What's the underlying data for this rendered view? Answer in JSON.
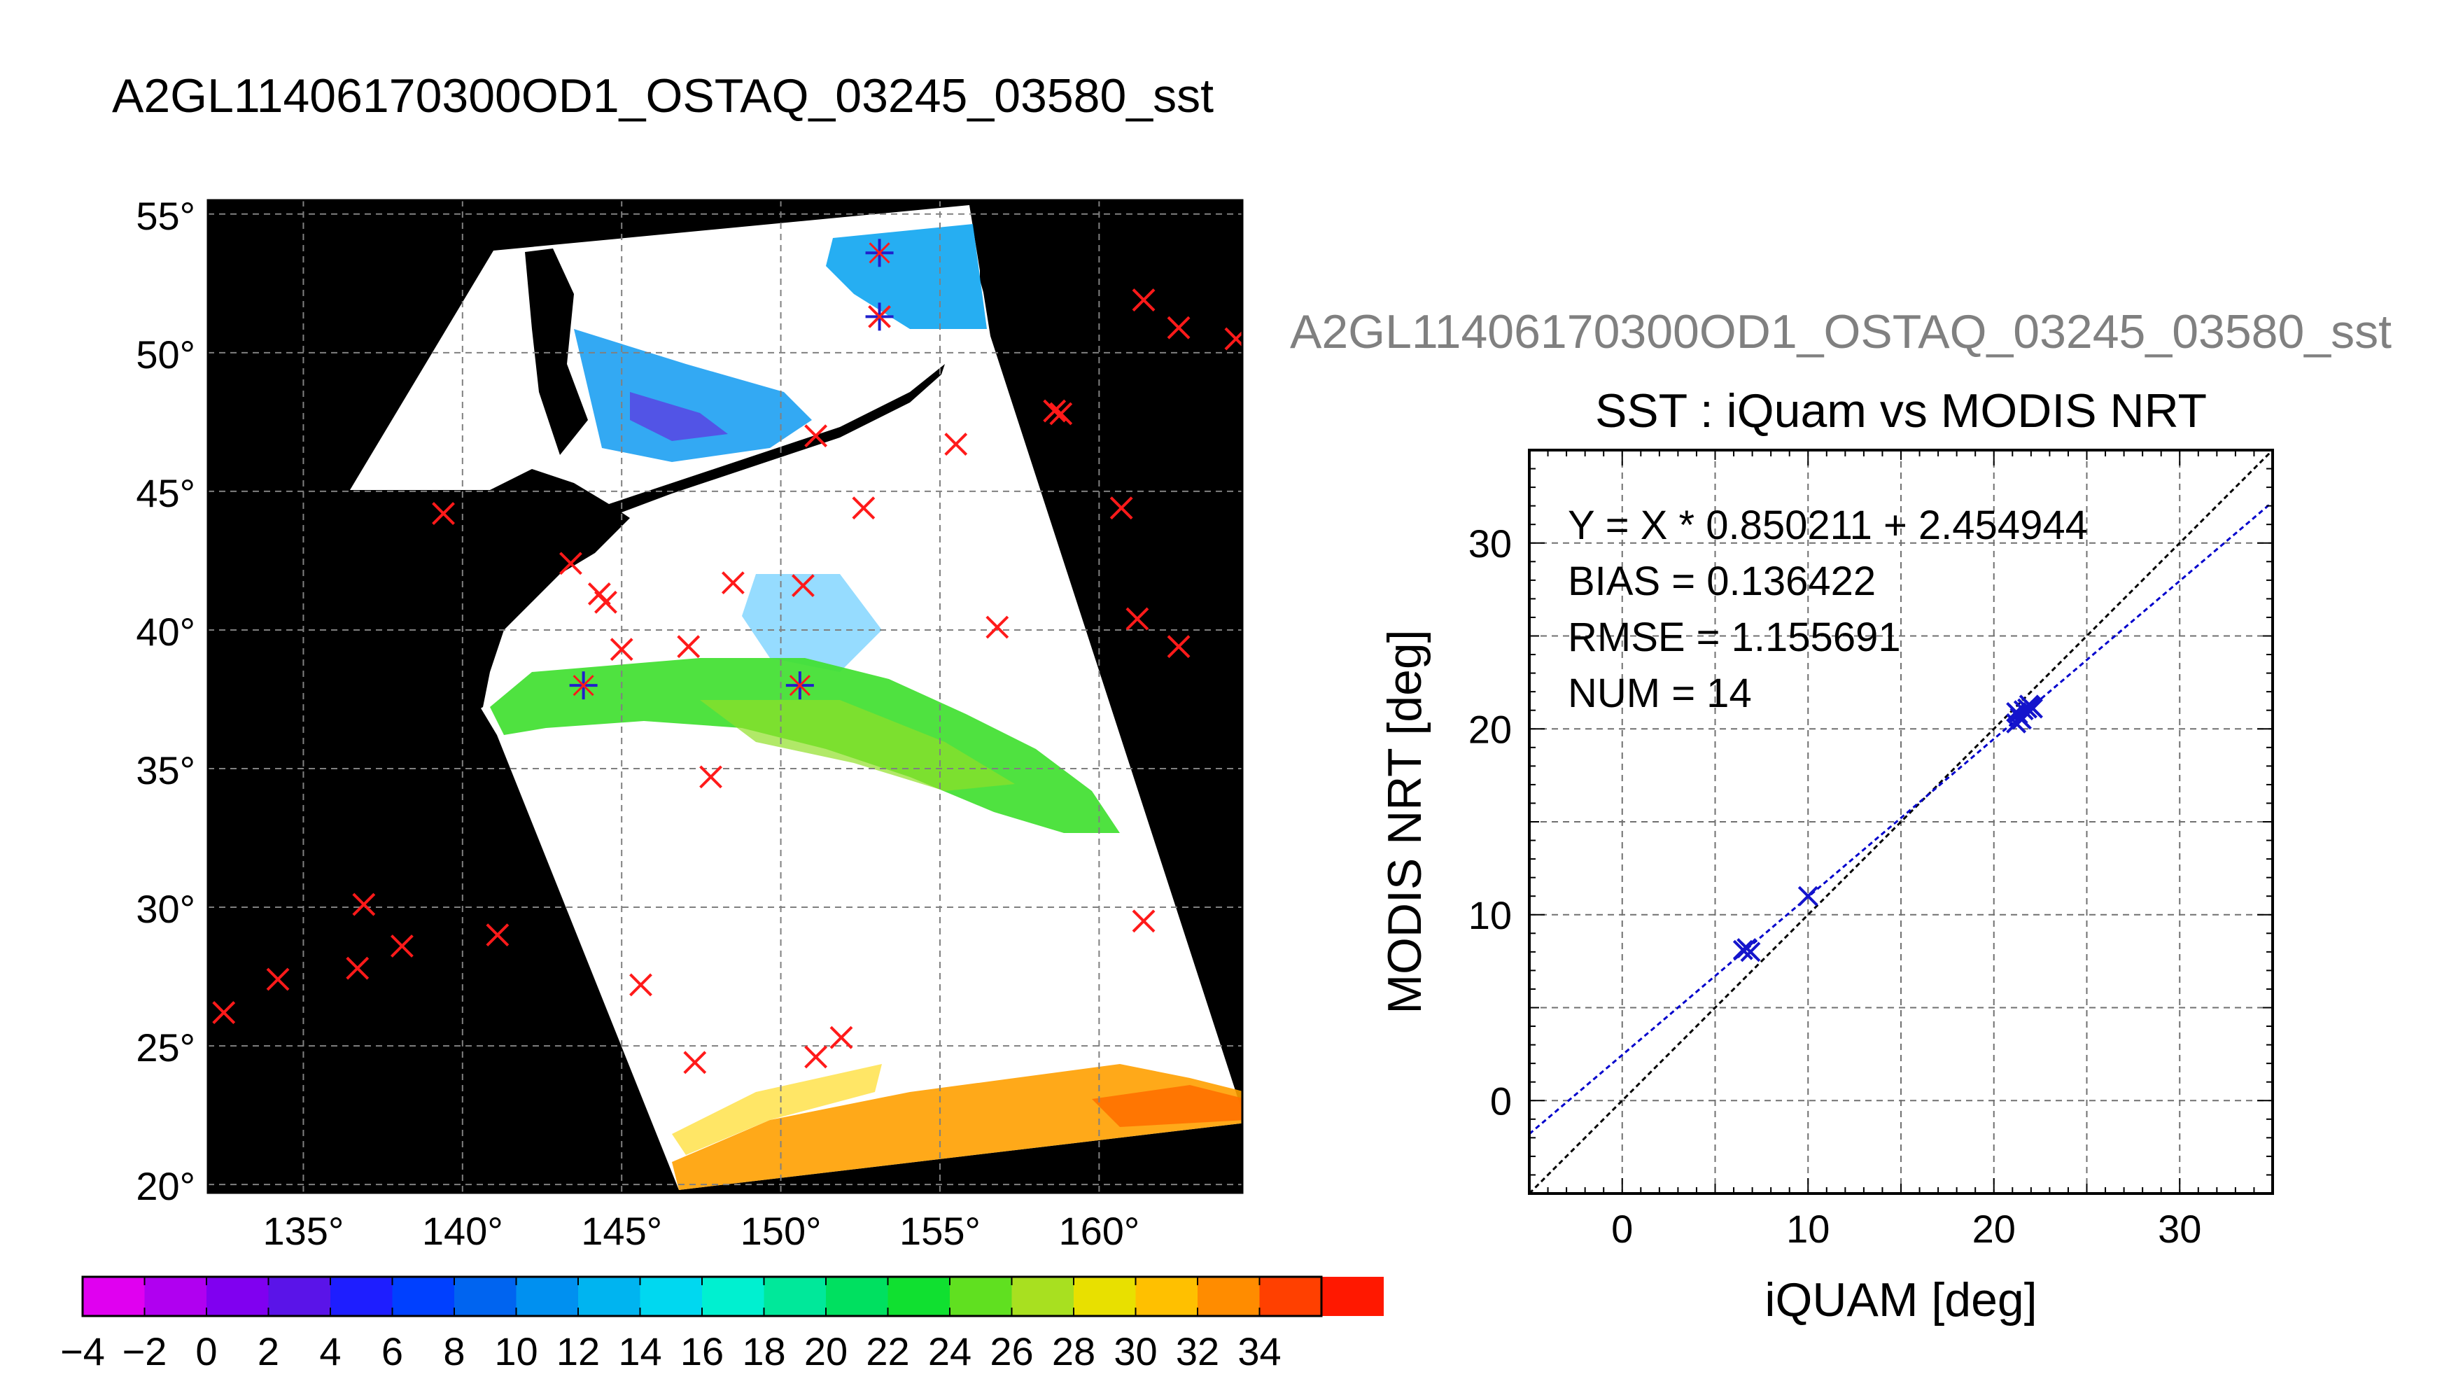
{
  "main_title": "A2GL11406170300OD1_OSTAQ_03245_03580_sst",
  "scatter_header": "A2GL11406170300OD1_OSTAQ_03245_03580_sst",
  "map": {
    "lat_ticks": [
      55,
      50,
      45,
      40,
      35,
      30,
      25,
      20
    ],
    "lon_ticks": [
      135,
      140,
      145,
      150,
      155,
      160
    ],
    "lat_labels": [
      "55°",
      "50°",
      "45°",
      "40°",
      "35°",
      "30°",
      "25°",
      "20°"
    ],
    "lon_labels": [
      "135°",
      "140°",
      "145°",
      "150°",
      "155°",
      "160°"
    ],
    "lon_range": [
      132,
      164.5
    ],
    "lat_range": [
      19.7,
      55.5
    ],
    "background_color": "#000000",
    "swath_color": "#ffffff",
    "insitu_markers": [
      [
        132.5,
        26.2
      ],
      [
        134.2,
        27.4
      ],
      [
        136.7,
        27.8
      ],
      [
        136.9,
        30.1
      ],
      [
        138.1,
        28.6
      ],
      [
        141.1,
        29.0
      ],
      [
        139.4,
        44.2
      ],
      [
        143.4,
        42.4
      ],
      [
        144.3,
        41.3
      ],
      [
        144.5,
        41.0
      ],
      [
        145.0,
        39.3
      ],
      [
        147.1,
        39.4
      ],
      [
        148.5,
        41.7
      ],
      [
        150.7,
        41.6
      ],
      [
        151.1,
        47.0
      ],
      [
        152.6,
        44.4
      ],
      [
        155.5,
        46.7
      ],
      [
        156.8,
        40.1
      ],
      [
        158.6,
        47.9
      ],
      [
        158.8,
        47.8
      ],
      [
        160.7,
        44.4
      ],
      [
        161.2,
        40.4
      ],
      [
        162.5,
        39.4
      ],
      [
        161.4,
        51.9
      ],
      [
        162.5,
        50.9
      ],
      [
        164.3,
        50.5
      ],
      [
        161.4,
        29.5
      ],
      [
        145.6,
        27.2
      ],
      [
        147.3,
        24.4
      ],
      [
        147.8,
        34.7
      ],
      [
        151.1,
        24.6
      ],
      [
        151.9,
        25.3
      ],
      [
        153.1,
        51.3
      ]
    ],
    "match_markers": [
      [
        143.8,
        38.0
      ],
      [
        150.6,
        38.0
      ],
      [
        153.1,
        53.6
      ],
      [
        153.1,
        51.3
      ]
    ]
  },
  "colorbar": {
    "tick_labels": [
      "−4",
      "−2",
      "0",
      "2",
      "4",
      "6",
      "8",
      "10",
      "12",
      "14",
      "16",
      "18",
      "20",
      "22",
      "24",
      "26",
      "28",
      "30",
      "32",
      "34"
    ],
    "min": -4,
    "max": 36,
    "step": 2,
    "colors": [
      "#e000f0",
      "#b000f0",
      "#8000f0",
      "#5a14e8",
      "#1e1eff",
      "#0040ff",
      "#0064f0",
      "#0090f0",
      "#00b4f0",
      "#00d8f0",
      "#00f0d0",
      "#00e89a",
      "#00e060",
      "#10e030",
      "#60e020",
      "#a8e020",
      "#e8e000",
      "#ffc000",
      "#ff8c00",
      "#ff4000",
      "#ff1800"
    ]
  },
  "chart_data": {
    "type": "scatter",
    "title": "SST : iQuam vs MODIS NRT",
    "xlabel": "iQUAM [deg]",
    "ylabel": "MODIS NRT [deg]",
    "xlim": [
      -5,
      35
    ],
    "ylim": [
      -5,
      35
    ],
    "xticks": [
      0,
      10,
      20,
      30
    ],
    "yticks": [
      0,
      10,
      20,
      30
    ],
    "grid": true,
    "stats": [
      "Y = X * 0.850211 + 2.454944",
      "BIAS = 0.136422",
      "RMSE = 1.155691",
      "NUM = 14"
    ],
    "fit": {
      "slope": 0.850211,
      "intercept": 2.454944,
      "color": "#0000cc"
    },
    "identity_line": {
      "slope": 1,
      "intercept": 0,
      "color": "#000000"
    },
    "points": [
      {
        "x": 6.5,
        "y": 8.1
      },
      {
        "x": 6.7,
        "y": 8.2
      },
      {
        "x": 6.9,
        "y": 8.0
      },
      {
        "x": 10.0,
        "y": 11.0
      },
      {
        "x": 21.2,
        "y": 20.3
      },
      {
        "x": 21.4,
        "y": 20.6
      },
      {
        "x": 21.3,
        "y": 20.8
      },
      {
        "x": 21.5,
        "y": 20.5
      },
      {
        "x": 21.6,
        "y": 21.0
      },
      {
        "x": 21.8,
        "y": 21.1
      },
      {
        "x": 22.0,
        "y": 21.2
      },
      {
        "x": 21.2,
        "y": 20.9
      },
      {
        "x": 21.9,
        "y": 21.3
      },
      {
        "x": 22.1,
        "y": 21.1
      }
    ],
    "marker_color": "#1414cc"
  }
}
